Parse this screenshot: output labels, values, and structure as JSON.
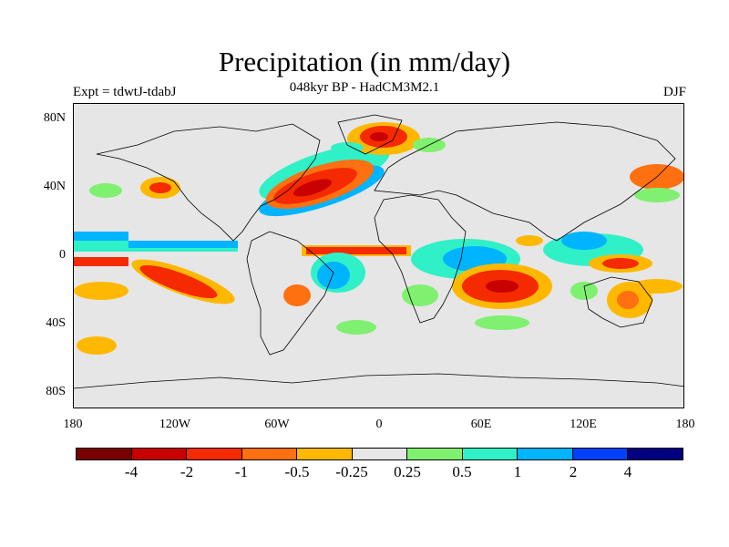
{
  "title": "Precipitation (in mm/day)",
  "subtitle": "048kyr BP - HadCM3M2.1",
  "experiment": "Expt = tdwtJ-tdabJ",
  "season": "DJF",
  "map": {
    "projection": "cylindrical equidistant",
    "background_color": "#e6e6e6",
    "lat_labels": [
      "80N",
      "40N",
      "0",
      "40S",
      "80S"
    ],
    "lon_labels": [
      "180",
      "120W",
      "60W",
      "0",
      "60E",
      "120E",
      "180"
    ]
  },
  "colorbar": {
    "colors": [
      "#7a0000",
      "#c80000",
      "#f52a00",
      "#ff7010",
      "#ffb800",
      "#e6e6e6",
      "#80f070",
      "#30f0c8",
      "#00b4ff",
      "#0040ff",
      "#000080"
    ],
    "labels": [
      "-4",
      "-2",
      "-1",
      "-0.5",
      "-0.25",
      "0.25",
      "0.5",
      "1",
      "2",
      "4"
    ]
  }
}
